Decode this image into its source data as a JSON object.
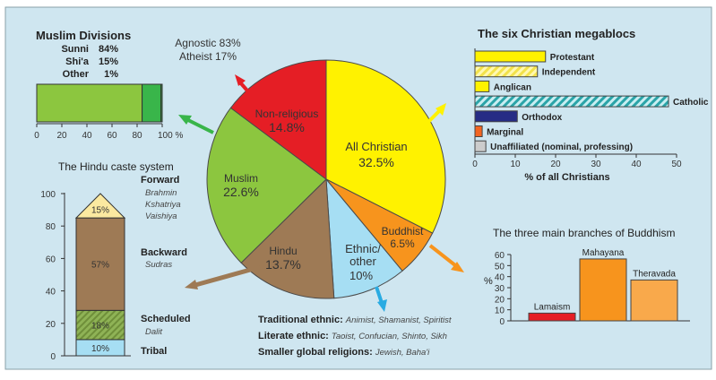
{
  "colors": {
    "background": "#cfe6f0",
    "red": "#e51e25",
    "green": "#8cc63f",
    "dark_green": "#39b54a",
    "yellow": "#fff200",
    "orange": "#f7941d",
    "light_blue": "#a6def3",
    "brown": "#9e7a55",
    "pale_yellow": "#fbe9a0",
    "navy": "#262c85",
    "gray": "#cccccc",
    "arrow_blue": "#29abe2"
  },
  "muslim_divisions": {
    "title": "Muslim Divisions",
    "rows": [
      {
        "label": "Sunni",
        "value": "84%"
      },
      {
        "label": "Shi'a",
        "value": "15%"
      },
      {
        "label": "Other",
        "value": "1%"
      }
    ],
    "axis_ticks": [
      "0",
      "20",
      "40",
      "60",
      "80",
      "100 %"
    ]
  },
  "agnostic_label": {
    "line1": "Agnostic 83%",
    "line2": "Atheist 17%"
  },
  "hindu_caste": {
    "title": "The Hindu caste system",
    "y_ticks": [
      "0",
      "20",
      "40",
      "60",
      "80",
      "100"
    ],
    "segment_labels": [
      "10%",
      "18%",
      "57%",
      "15%"
    ],
    "groups": [
      {
        "name": "Forward",
        "sub": [
          "Brahmin",
          "Kshatriya",
          "Vaishiya"
        ]
      },
      {
        "name": "Backward",
        "sub": [
          "Sudras"
        ]
      },
      {
        "name": "Scheduled",
        "sub": [
          "Dalit"
        ]
      },
      {
        "name": "Tribal",
        "sub": []
      }
    ]
  },
  "pie_labels": {
    "christian": {
      "line1": "All Christian",
      "line2": "32.5%"
    },
    "buddhist": {
      "line1": "Buddhist",
      "line2": "6.5%"
    },
    "ethnic": {
      "line1": "Ethnic/",
      "line2": "other",
      "line3": "10%"
    },
    "hindu": {
      "line1": "Hindu",
      "line2": "13.7%"
    },
    "muslim": {
      "line1": "Muslim",
      "line2": "22.6%"
    },
    "nonreligious": {
      "line1": "Non-religious",
      "line2": "14.8%"
    }
  },
  "christian_blocs": {
    "title": "The six Christian megablocs",
    "bar_labels": [
      "Protestant",
      "Independent",
      "Anglican",
      "Catholic",
      "Orthodox",
      "Marginal",
      "Unaffiliated (nominal, professing)"
    ],
    "axis_ticks": [
      "0",
      "10",
      "20",
      "30",
      "40",
      "50"
    ],
    "xlabel": "% of all Christians"
  },
  "ethnic_notes": [
    {
      "head": "Traditional ethnic:",
      "items": "Animist, Shamanist, Spiritist"
    },
    {
      "head": "Literate ethnic:",
      "items": "Taoist, Confucian, Shinto, Sikh"
    },
    {
      "head": "Smaller global religions:",
      "items": "Jewish, Baha'i"
    }
  ],
  "buddhism": {
    "title": "The three main branches of Buddhism",
    "ylabel": "%",
    "y_ticks": [
      "0",
      "10",
      "20",
      "30",
      "40",
      "50",
      "60"
    ]
  },
  "chart_data": [
    {
      "type": "pie",
      "title": "",
      "categories": [
        "All Christian",
        "Buddhist",
        "Ethnic/other",
        "Hindu",
        "Muslim",
        "Non-religious"
      ],
      "values": [
        32.5,
        6.5,
        10,
        13.7,
        22.6,
        14.8
      ],
      "colors": [
        "#fff200",
        "#f7941d",
        "#a6def3",
        "#9e7a55",
        "#8cc63f",
        "#e51e25"
      ]
    },
    {
      "type": "bar",
      "title": "Muslim Divisions",
      "orientation": "horizontal-stacked",
      "categories": [
        "Sunni",
        "Shi'a",
        "Other"
      ],
      "values": [
        84,
        15,
        1
      ],
      "xlim": [
        0,
        100
      ]
    },
    {
      "type": "bar",
      "title": "The Hindu caste system",
      "orientation": "vertical-stacked",
      "categories": [
        "Tribal",
        "Scheduled",
        "Backward",
        "Forward"
      ],
      "values": [
        10,
        18,
        57,
        15
      ],
      "ylim": [
        0,
        100
      ]
    },
    {
      "type": "bar",
      "title": "The six Christian megablocs",
      "orientation": "horizontal",
      "categories": [
        "Protestant",
        "Independent",
        "Anglican",
        "Catholic",
        "Orthodox",
        "Marginal",
        "Unaffiliated (nominal, professing)"
      ],
      "values": [
        17.5,
        15.5,
        3.5,
        48,
        10.5,
        1.8,
        2.7
      ],
      "xlabel": "% of all Christians",
      "xlim": [
        0,
        50
      ]
    },
    {
      "type": "bar",
      "title": "The three main branches of Buddhism",
      "categories": [
        "Lamaism",
        "Mahayana",
        "Theravada"
      ],
      "values": [
        7,
        56,
        37
      ],
      "ylabel": "%",
      "ylim": [
        0,
        60
      ]
    }
  ]
}
